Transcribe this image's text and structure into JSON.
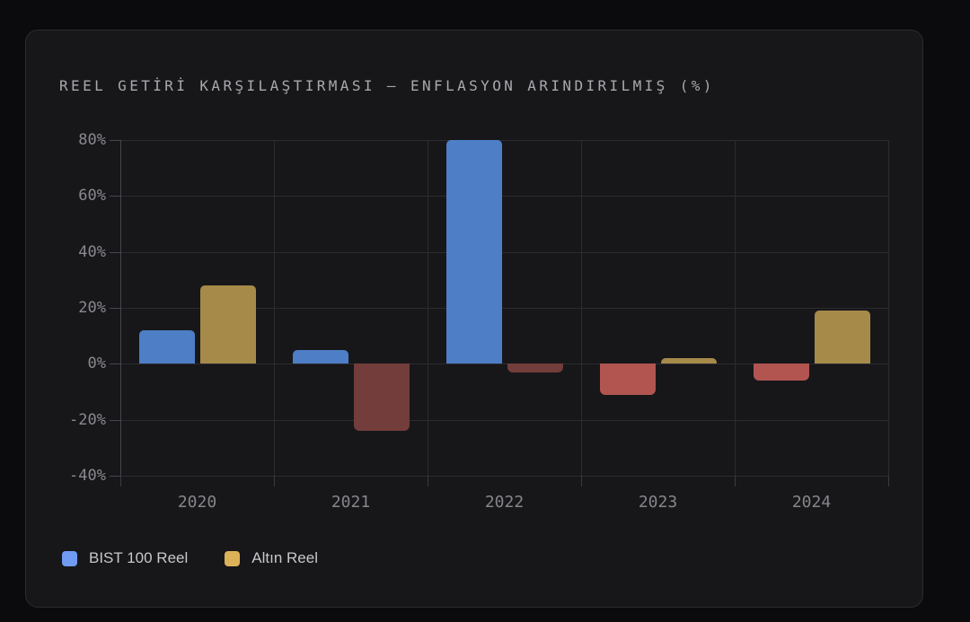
{
  "card": {
    "background": "#17171a",
    "border_color": "#2b2b30"
  },
  "chart": {
    "title": "REEL GETİRİ KARŞILAŞTIRMASI — ENFLASYON ARINDIRILMIŞ (%)",
    "title_color": "#a9a9ad"
  },
  "chart_data": {
    "type": "bar",
    "title": "REEL GETİRİ KARŞILAŞTIRMASI — ENFLASYON ARINDIRILMIŞ (%)",
    "categories": [
      "2020",
      "2021",
      "2022",
      "2023",
      "2024"
    ],
    "series": [
      {
        "name": "BIST 100 Reel",
        "values": [
          12,
          5,
          80,
          -11,
          -6
        ],
        "color_positive": "#4d7ec6",
        "color_negative": "#b25551",
        "legend_color": "#6f9bf2"
      },
      {
        "name": "Altın Reel",
        "values": [
          28,
          -24,
          -3,
          2,
          19
        ],
        "color_positive": "#a68a4a",
        "color_negative": "#723d3a",
        "legend_color": "#dcb259"
      }
    ],
    "xlabel": "",
    "ylabel": "",
    "ylim": [
      -40,
      80
    ],
    "y_ticks": [
      80,
      60,
      40,
      20,
      0,
      -20,
      -40
    ],
    "y_tick_labels": [
      "80%",
      "60%",
      "40%",
      "20%",
      "0%",
      "-20%",
      "-40%"
    ],
    "grid": true,
    "legend_position": "bottom-left",
    "colors": {
      "grid": "#2c2c30",
      "axis": "#46464c",
      "tick_label": "#8a8a8f",
      "legend_text": "#c8c8cb"
    }
  }
}
